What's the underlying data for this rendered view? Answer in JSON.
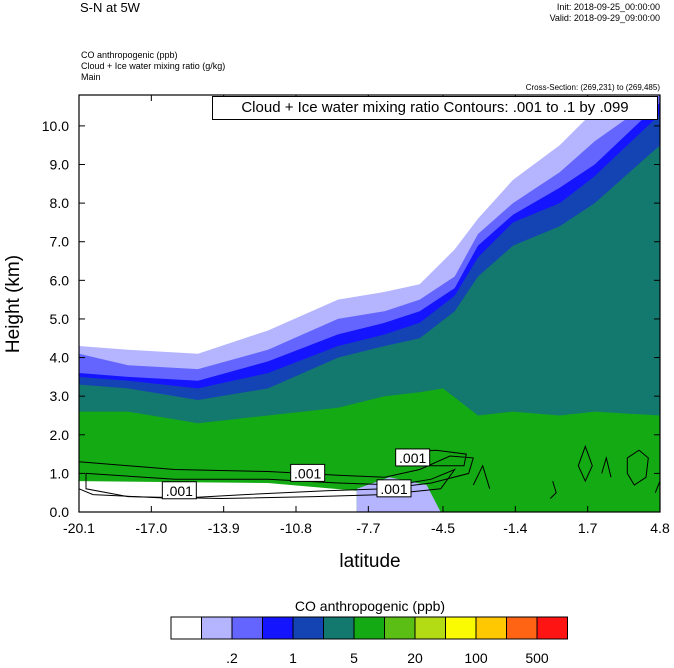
{
  "header": {
    "title": "S-N at 5W",
    "init": "Init: 2018-09-25_00:00:00",
    "valid": "Valid: 2018-09-29_09:00:00"
  },
  "fields": [
    "CO anthropogenic   (ppb)",
    "Cloud + Ice water mixing ratio   (g/kg)",
    "Main"
  ],
  "cross_section": "Cross-Section: (269,231) to (269,485)",
  "contour_info": "Cloud + Ice water mixing ratio Contours: .001 to .1 by .099",
  "contour_labels": [
    ".001",
    ".001",
    ".001",
    ".001"
  ],
  "legend": {
    "title": "CO anthropogenic  (ppb)",
    "labels": [
      ".2",
      "1",
      "5",
      "20",
      "100",
      "500"
    ],
    "colors": [
      "#ffffff",
      "#b4b4ff",
      "#6464ff",
      "#1414ff",
      "#1443b4",
      "#13786e",
      "#14aa14",
      "#5abe14",
      "#b4dc14",
      "#fafa00",
      "#ffc800",
      "#ff6414",
      "#ff1414"
    ]
  },
  "chart_data": {
    "type": "heatmap",
    "title": "",
    "xlabel": "latitude",
    "ylabel": "Height (km)",
    "x_ticks": [
      "-20.1",
      "-17.0",
      "-13.9",
      "-10.8",
      "-7.7",
      "-4.5",
      "-1.4",
      "1.7",
      "4.8"
    ],
    "y_ticks": [
      "0.0",
      "1.0",
      "2.0",
      "3.0",
      "4.0",
      "5.0",
      "6.0",
      "7.0",
      "8.0",
      "9.0",
      "10.0"
    ],
    "xlim": [
      -20.1,
      4.8
    ],
    "ylim": [
      0,
      10.8
    ],
    "colorbar_levels": [
      0.2,
      1,
      5,
      20,
      100,
      500
    ],
    "contour_levels": [
      0.001,
      0.1
    ],
    "contour_label_positions": [
      [
        -15.8,
        0.55
      ],
      [
        -10.3,
        1.0
      ],
      [
        -5.8,
        1.4
      ],
      [
        -6.6,
        0.6
      ]
    ],
    "fill_regions": [
      {
        "level": "white",
        "upper_boundary": [
          [
            -20.1,
            4.3
          ],
          [
            -18.0,
            4.0
          ],
          [
            -15.0,
            3.9
          ],
          [
            -12.0,
            4.4
          ],
          [
            -9.0,
            5.1
          ],
          [
            -7.0,
            5.4
          ],
          [
            -5.5,
            5.5
          ],
          [
            -4.0,
            6.3
          ],
          [
            -3.0,
            7.4
          ],
          [
            -1.5,
            8.4
          ],
          [
            0.5,
            9.2
          ],
          [
            2.0,
            10.1
          ],
          [
            2.3,
            10.8
          ]
        ]
      },
      {
        "level": "#b4b4ff",
        "upper_boundary": [
          [
            -20.1,
            4.3
          ],
          [
            -18.0,
            4.2
          ],
          [
            -15.0,
            4.1
          ],
          [
            -12.0,
            4.7
          ],
          [
            -9.0,
            5.5
          ],
          [
            -7.0,
            5.7
          ],
          [
            -5.5,
            5.9
          ],
          [
            -4.0,
            6.8
          ],
          [
            -3.0,
            7.6
          ],
          [
            -1.5,
            8.6
          ],
          [
            0.5,
            9.5
          ],
          [
            2.0,
            10.4
          ],
          [
            4.8,
            10.8
          ]
        ]
      },
      {
        "level": "#6464ff",
        "upper_boundary": [
          [
            -20.1,
            4.1
          ],
          [
            -18.0,
            3.8
          ],
          [
            -15.0,
            3.7
          ],
          [
            -12.0,
            4.2
          ],
          [
            -9.0,
            5.0
          ],
          [
            -7.0,
            5.2
          ],
          [
            -5.5,
            5.5
          ],
          [
            -4.0,
            6.1
          ],
          [
            -3.0,
            7.2
          ],
          [
            -1.5,
            8.0
          ],
          [
            0.5,
            8.8
          ],
          [
            2.0,
            9.6
          ],
          [
            4.8,
            10.8
          ]
        ]
      },
      {
        "level": "#1414ff",
        "upper_boundary": [
          [
            -20.1,
            3.6
          ],
          [
            -18.0,
            3.5
          ],
          [
            -15.0,
            3.4
          ],
          [
            -12.0,
            3.9
          ],
          [
            -9.0,
            4.6
          ],
          [
            -7.0,
            4.9
          ],
          [
            -5.5,
            5.2
          ],
          [
            -4.0,
            5.8
          ],
          [
            -3.0,
            6.9
          ],
          [
            -1.5,
            7.7
          ],
          [
            0.5,
            8.4
          ],
          [
            2.0,
            9.0
          ],
          [
            4.8,
            10.6
          ]
        ]
      },
      {
        "level": "#1443b4",
        "upper_boundary": [
          [
            -20.1,
            3.5
          ],
          [
            -18.0,
            3.4
          ],
          [
            -15.0,
            3.2
          ],
          [
            -12.0,
            3.6
          ],
          [
            -9.0,
            4.3
          ],
          [
            -7.0,
            4.6
          ],
          [
            -5.5,
            4.9
          ],
          [
            -4.0,
            5.6
          ],
          [
            -3.0,
            6.6
          ],
          [
            -1.5,
            7.5
          ],
          [
            0.5,
            8.0
          ],
          [
            2.0,
            8.7
          ],
          [
            4.8,
            10.3
          ]
        ]
      },
      {
        "level": "#13786e",
        "upper_boundary": [
          [
            -20.1,
            3.3
          ],
          [
            -18.0,
            3.2
          ],
          [
            -15.0,
            2.9
          ],
          [
            -12.0,
            3.2
          ],
          [
            -9.0,
            4.0
          ],
          [
            -7.0,
            4.3
          ],
          [
            -5.5,
            4.5
          ],
          [
            -4.0,
            5.2
          ],
          [
            -3.0,
            6.1
          ],
          [
            -1.5,
            6.9
          ],
          [
            0.5,
            7.4
          ],
          [
            2.0,
            8.0
          ],
          [
            4.8,
            9.5
          ]
        ]
      },
      {
        "level": "#14aa14",
        "upper_boundary": [
          [
            -20.1,
            2.6
          ],
          [
            -18.0,
            2.6
          ],
          [
            -15.0,
            2.3
          ],
          [
            -12.0,
            2.5
          ],
          [
            -9.0,
            2.7
          ],
          [
            -7.0,
            3.0
          ],
          [
            -5.5,
            3.1
          ],
          [
            -4.5,
            3.2
          ],
          [
            -3.0,
            2.5
          ],
          [
            -1.5,
            2.6
          ],
          [
            0.5,
            2.5
          ],
          [
            2.0,
            2.6
          ],
          [
            4.8,
            2.5
          ]
        ]
      }
    ]
  }
}
